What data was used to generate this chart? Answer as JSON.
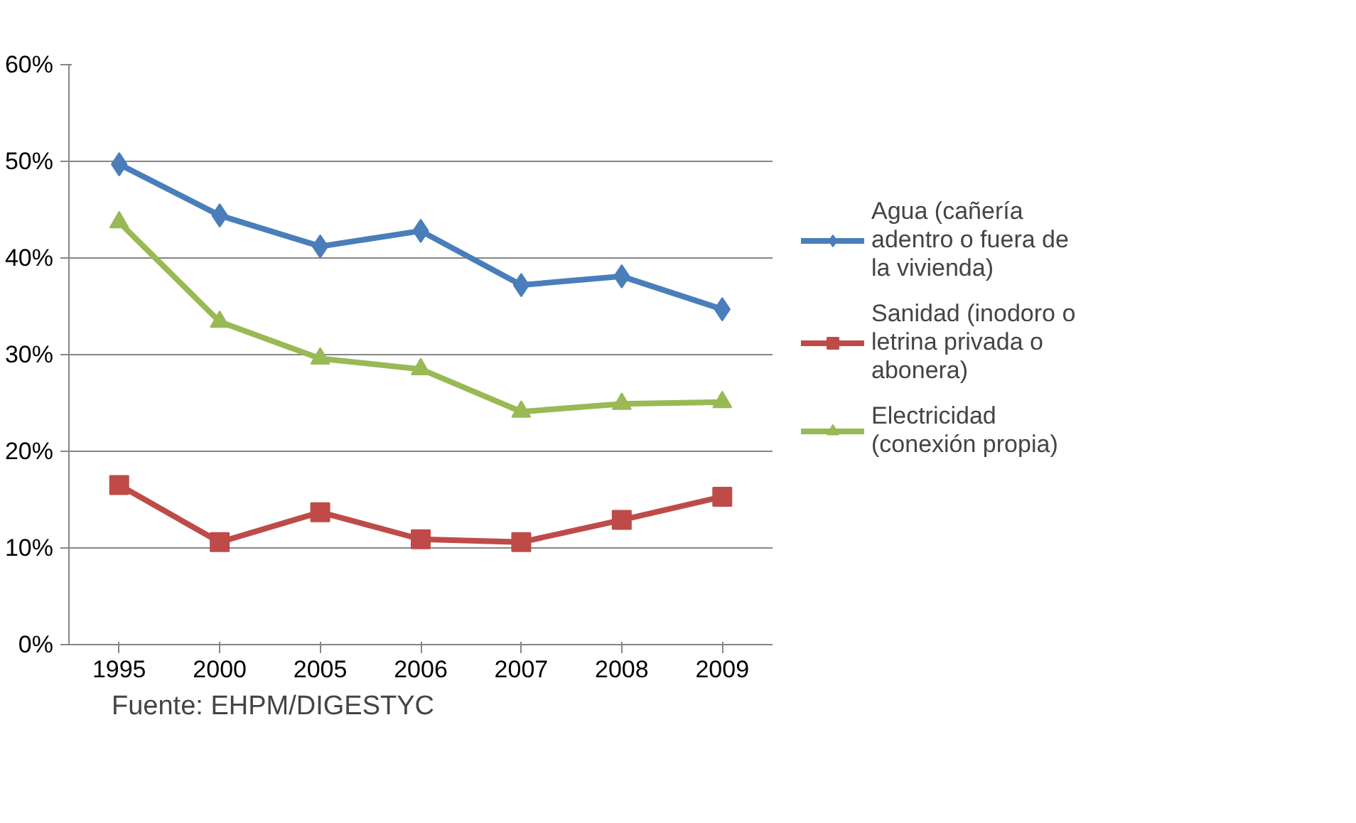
{
  "chart_data": {
    "type": "line",
    "categories": [
      "1995",
      "2000",
      "2005",
      "2006",
      "2007",
      "2008",
      "2009"
    ],
    "series": [
      {
        "name": "Agua (cañería adentro o fuera de la vivienda)",
        "color": "#4a7ebb",
        "marker": "diamond",
        "values": [
          49.7,
          44.4,
          41.2,
          42.8,
          37.2,
          38.1,
          34.7
        ]
      },
      {
        "name": "Sanidad (inodoro o letrina privada o abonera)",
        "color": "#be4b48",
        "marker": "square",
        "values": [
          16.5,
          10.6,
          13.7,
          10.9,
          10.6,
          12.9,
          15.3
        ]
      },
      {
        "name": "Electricidad (conexión propia)",
        "color": "#98b954",
        "marker": "triangle",
        "values": [
          43.7,
          33.4,
          29.6,
          28.5,
          24.1,
          24.9,
          25.1
        ]
      }
    ],
    "ylim": [
      0,
      60
    ],
    "yticks": [
      {
        "value": 0,
        "label": "0%"
      },
      {
        "value": 10,
        "label": "10%"
      },
      {
        "value": 20,
        "label": "20%"
      },
      {
        "value": 30,
        "label": "30%"
      },
      {
        "value": 40,
        "label": "40%"
      },
      {
        "value": 50,
        "label": "50%"
      },
      {
        "value": 60,
        "label": "60%"
      }
    ],
    "grid": "y",
    "legend": "right",
    "annotations": [
      "Fuente:  EHPM/DIGESTYC"
    ]
  }
}
